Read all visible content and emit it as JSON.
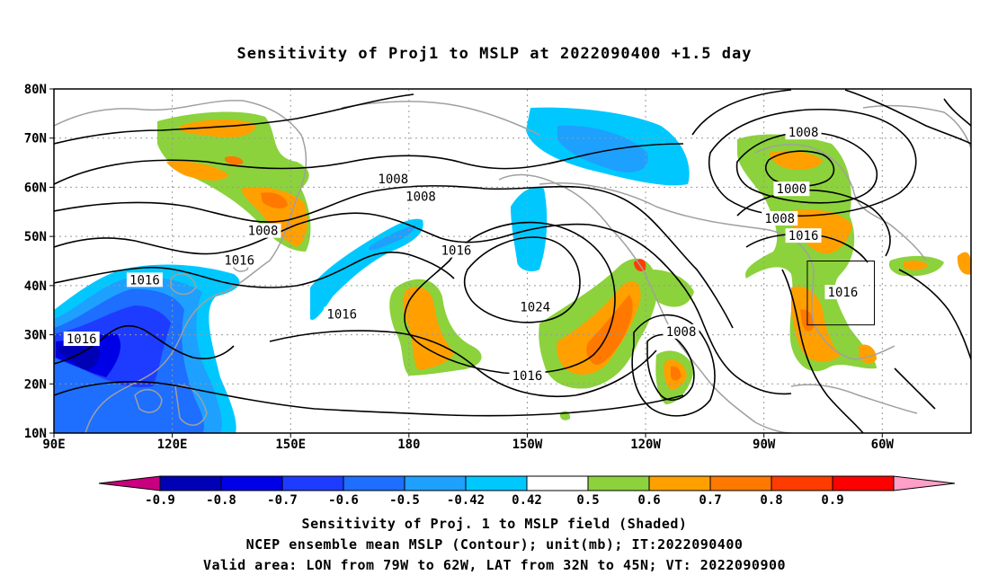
{
  "title": "Sensitivity of Proj1 to MSLP at 2022090400 +1.5 day",
  "lat_labels": [
    "80N",
    "70N",
    "60N",
    "50N",
    "40N",
    "30N",
    "20N",
    "10N"
  ],
  "lon_labels": [
    "90E",
    "120E",
    "150E",
    "180",
    "150W",
    "120W",
    "90W",
    "60W"
  ],
  "contour_labels": [
    {
      "text": "1008",
      "lon": 176,
      "lat": 61.5
    },
    {
      "text": "1008",
      "lon": -177,
      "lat": 58
    },
    {
      "text": "1008",
      "lon": 143,
      "lat": 51
    },
    {
      "text": "1016",
      "lon": -168,
      "lat": 47
    },
    {
      "text": "1016",
      "lon": 137,
      "lat": 45
    },
    {
      "text": "1016",
      "lon": 113,
      "lat": 41
    },
    {
      "text": "1016",
      "lon": 163,
      "lat": 34
    },
    {
      "text": "1024",
      "lon": -148,
      "lat": 35.5
    },
    {
      "text": "1016",
      "lon": 97,
      "lat": 29
    },
    {
      "text": "1016",
      "lon": -150,
      "lat": 21.5
    },
    {
      "text": "1008",
      "lon": -111,
      "lat": 30.5
    },
    {
      "text": "1008",
      "lon": -80,
      "lat": 71
    },
    {
      "text": "1000",
      "lon": -83,
      "lat": 59.5
    },
    {
      "text": "1008",
      "lon": -86,
      "lat": 53.5
    },
    {
      "text": "1016",
      "lon": -80,
      "lat": 50
    },
    {
      "text": "1016",
      "lon": -70,
      "lat": 38.5
    }
  ],
  "valid_box": {
    "lon_min": -79,
    "lon_max": -62,
    "lat_min": 32,
    "lat_max": 45
  },
  "colorbar": {
    "labels": [
      "-0.9",
      "-0.8",
      "-0.7",
      "-0.6",
      "-0.5",
      "-0.42",
      "0.42",
      "0.5",
      "0.6",
      "0.7",
      "0.8",
      "0.9"
    ],
    "colors": [
      "#c8007f",
      "#0000b4",
      "#0000e6",
      "#1e3cff",
      "#1e6eff",
      "#1ea0ff",
      "#00c8ff",
      "#ffffff",
      "#8cd23c",
      "#ffa000",
      "#ff7800",
      "#ff3c00",
      "#ff0000",
      "#ff9ec8"
    ]
  },
  "footer": {
    "line1": "Sensitivity of Proj. 1 to MSLP field (Shaded)",
    "line2": "NCEP ensemble mean MSLP (Contour); unit(mb); IT:2022090400",
    "line3": "Valid area: LON from 79W to 62W, LAT from 32N to 45N; VT: 2022090900"
  }
}
